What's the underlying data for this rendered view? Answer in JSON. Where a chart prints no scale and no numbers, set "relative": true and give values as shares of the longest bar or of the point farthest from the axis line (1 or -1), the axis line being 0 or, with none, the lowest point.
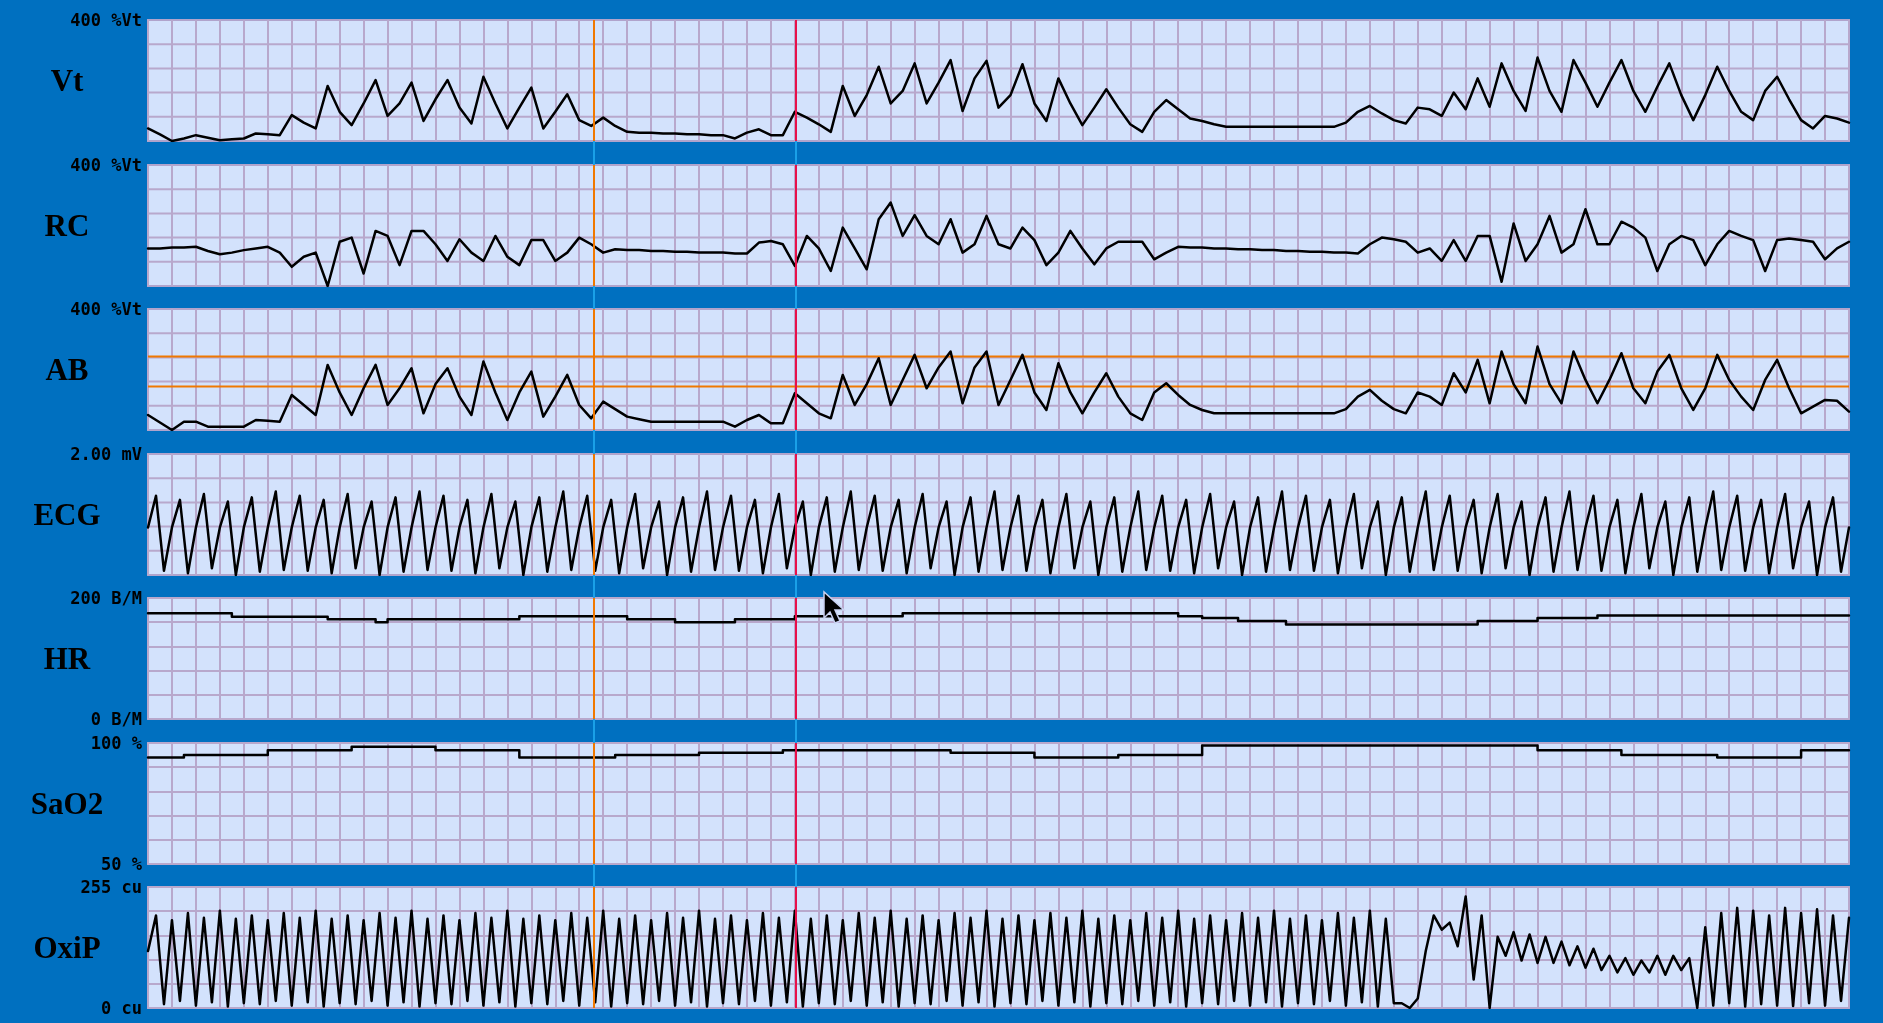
{
  "chart_data": [
    {
      "type": "line",
      "ylabel": "Vt",
      "annotations": [
        "400 %Vt"
      ],
      "relative": true,
      "grid": true,
      "tick_labels": false,
      "marker": "none",
      "line_style": "solid",
      "categories": [
        null,
        null,
        null,
        null,
        null,
        null,
        null,
        null,
        null,
        null,
        null,
        null,
        null,
        null,
        null,
        null,
        null,
        null,
        null,
        null,
        null,
        null,
        null,
        null,
        null,
        null,
        null,
        null,
        null,
        null,
        null,
        null,
        null,
        null,
        null,
        null,
        null,
        null,
        null,
        null,
        null,
        null,
        null,
        null,
        null,
        null,
        null,
        null,
        null,
        null,
        null,
        null,
        null,
        null,
        null,
        null,
        null,
        null,
        null,
        null,
        null,
        null,
        null,
        null,
        null,
        null,
        null,
        null,
        null,
        null,
        null,
        null,
        null,
        null,
        null,
        null,
        null,
        null,
        null,
        null,
        null,
        null,
        null,
        null,
        null,
        null,
        null,
        null,
        null,
        null,
        null,
        null,
        null,
        null,
        null,
        null,
        null,
        null,
        null,
        null,
        null,
        null,
        null,
        null,
        null,
        null,
        null,
        null,
        null,
        null,
        null,
        null,
        null,
        null,
        null,
        null,
        null,
        null,
        null,
        null,
        null,
        null,
        null,
        null,
        null,
        null,
        null,
        null,
        null,
        null,
        null,
        null,
        null,
        null,
        null,
        null,
        null,
        null,
        null,
        null,
        null,
        null,
        null
      ],
      "series": [
        {
          "color": "#000000",
          "values": [
            0.15,
            0.08,
            0,
            0.03,
            0.07,
            0.04,
            0.01,
            0.02,
            0.03,
            0.09,
            0.08,
            0.07,
            0.31,
            0.22,
            0.15,
            0.66,
            0.35,
            0.19,
            0.45,
            0.73,
            0.3,
            0.45,
            0.7,
            0.24,
            0.5,
            0.73,
            0.4,
            0.21,
            0.77,
            0.45,
            0.15,
            0.4,
            0.64,
            0.15,
            0.35,
            0.56,
            0.25,
            0.18,
            0.28,
            0.18,
            0.11,
            0.1,
            0.1,
            0.09,
            0.09,
            0.08,
            0.08,
            0.07,
            0.07,
            0.03,
            0.1,
            0.14,
            0.07,
            0.07,
            0.35,
            0.28,
            0.2,
            0.11,
            0.66,
            0.3,
            0.55,
            0.89,
            0.45,
            0.6,
            0.93,
            0.45,
            0.7,
            0.97,
            0.36,
            0.75,
            0.96,
            0.4,
            0.55,
            0.92,
            0.45,
            0.24,
            0.75,
            0.45,
            0.19,
            0.4,
            0.62,
            0.4,
            0.2,
            0.11,
            0.35,
            0.49,
            0.38,
            0.27,
            0.24,
            0.2,
            0.17,
            0.17,
            0.17,
            0.17,
            0.17,
            0.17,
            0.17,
            0.17,
            0.17,
            0.17,
            0.22,
            0.35,
            0.42,
            0.33,
            0.25,
            0.21,
            0.4,
            0.38,
            0.3,
            0.58,
            0.38,
            0.75,
            0.41,
            0.93,
            0.6,
            0.36,
            1,
            0.6,
            0.35,
            0.97,
            0.7,
            0.41,
            0.7,
            0.97,
            0.6,
            0.35,
            0.65,
            0.93,
            0.55,
            0.25,
            0.55,
            0.89,
            0.6,
            0.35,
            0.25,
            0.6,
            0.77,
            0.5,
            0.25,
            0.15,
            0.3,
            0.27,
            0.22
          ]
        }
      ]
    },
    {
      "type": "line",
      "ylabel": "RC",
      "annotations": [
        "400 %Vt"
      ],
      "relative": true,
      "grid": true,
      "tick_labels": false,
      "marker": "none",
      "line_style": "solid",
      "categories": [
        null,
        null,
        null,
        null,
        null,
        null,
        null,
        null,
        null,
        null,
        null,
        null,
        null,
        null,
        null,
        null,
        null,
        null,
        null,
        null,
        null,
        null,
        null,
        null,
        null,
        null,
        null,
        null,
        null,
        null,
        null,
        null,
        null,
        null,
        null,
        null,
        null,
        null,
        null,
        null,
        null,
        null,
        null,
        null,
        null,
        null,
        null,
        null,
        null,
        null,
        null,
        null,
        null,
        null,
        null,
        null,
        null,
        null,
        null,
        null,
        null,
        null,
        null,
        null,
        null,
        null,
        null,
        null,
        null,
        null,
        null,
        null,
        null,
        null,
        null,
        null,
        null,
        null,
        null,
        null,
        null,
        null,
        null,
        null,
        null,
        null,
        null,
        null,
        null,
        null,
        null,
        null,
        null,
        null,
        null,
        null,
        null,
        null,
        null,
        null,
        null,
        null,
        null,
        null,
        null,
        null,
        null,
        null,
        null,
        null,
        null,
        null,
        null,
        null,
        null,
        null,
        null,
        null,
        null,
        null,
        null,
        null,
        null,
        null,
        null,
        null,
        null,
        null,
        null,
        null,
        null,
        null,
        null,
        null,
        null,
        null,
        null,
        null,
        null,
        null,
        null,
        null,
        null
      ],
      "series": [
        {
          "color": "#000000",
          "values": [
            0.45,
            0.45,
            0.46,
            0.46,
            0.47,
            0.42,
            0.38,
            0.4,
            0.43,
            0.45,
            0.47,
            0.4,
            0.23,
            0.35,
            0.4,
            0,
            0.53,
            0.58,
            0.15,
            0.66,
            0.6,
            0.25,
            0.66,
            0.66,
            0.5,
            0.3,
            0.56,
            0.4,
            0.3,
            0.6,
            0.35,
            0.25,
            0.55,
            0.55,
            0.3,
            0.4,
            0.58,
            0.5,
            0.4,
            0.44,
            0.43,
            0.43,
            0.42,
            0.42,
            0.41,
            0.41,
            0.4,
            0.4,
            0.4,
            0.39,
            0.39,
            0.52,
            0.54,
            0.5,
            0.24,
            0.6,
            0.45,
            0.18,
            0.7,
            0.45,
            0.2,
            0.8,
            1,
            0.6,
            0.85,
            0.6,
            0.5,
            0.8,
            0.4,
            0.5,
            0.84,
            0.5,
            0.45,
            0.7,
            0.55,
            0.25,
            0.4,
            0.66,
            0.45,
            0.26,
            0.45,
            0.53,
            0.53,
            0.53,
            0.32,
            0.4,
            0.47,
            0.46,
            0.46,
            0.45,
            0.45,
            0.44,
            0.44,
            0.43,
            0.43,
            0.42,
            0.42,
            0.41,
            0.41,
            0.4,
            0.4,
            0.39,
            0.5,
            0.58,
            0.56,
            0.53,
            0.4,
            0.45,
            0.3,
            0.55,
            0.3,
            0.6,
            0.6,
            0.05,
            0.75,
            0.3,
            0.5,
            0.84,
            0.4,
            0.5,
            0.92,
            0.5,
            0.5,
            0.77,
            0.7,
            0.58,
            0.18,
            0.5,
            0.6,
            0.55,
            0.25,
            0.5,
            0.66,
            0.6,
            0.55,
            0.18,
            0.55,
            0.57,
            0.55,
            0.53,
            0.32,
            0.45,
            0.53
          ]
        }
      ]
    },
    {
      "type": "line",
      "ylabel": "AB",
      "annotations": [
        "400 %Vt"
      ],
      "relative": true,
      "grid": true,
      "tick_labels": false,
      "marker": "none",
      "line_style": "solid",
      "ref_lines": [
        {
          "axis": "y",
          "value": 0.88,
          "color": "#f07800"
        },
        {
          "axis": "y",
          "value": 0.52,
          "color": "#f07800"
        }
      ],
      "categories": [
        null,
        null,
        null,
        null,
        null,
        null,
        null,
        null,
        null,
        null,
        null,
        null,
        null,
        null,
        null,
        null,
        null,
        null,
        null,
        null,
        null,
        null,
        null,
        null,
        null,
        null,
        null,
        null,
        null,
        null,
        null,
        null,
        null,
        null,
        null,
        null,
        null,
        null,
        null,
        null,
        null,
        null,
        null,
        null,
        null,
        null,
        null,
        null,
        null,
        null,
        null,
        null,
        null,
        null,
        null,
        null,
        null,
        null,
        null,
        null,
        null,
        null,
        null,
        null,
        null,
        null,
        null,
        null,
        null,
        null,
        null,
        null,
        null,
        null,
        null,
        null,
        null,
        null,
        null,
        null,
        null,
        null,
        null,
        null,
        null,
        null,
        null,
        null,
        null,
        null,
        null,
        null,
        null,
        null,
        null,
        null,
        null,
        null,
        null,
        null,
        null,
        null,
        null,
        null,
        null,
        null,
        null,
        null,
        null,
        null,
        null,
        null,
        null,
        null,
        null,
        null,
        null,
        null,
        null,
        null,
        null,
        null,
        null,
        null,
        null,
        null,
        null,
        null,
        null,
        null,
        null,
        null,
        null,
        null,
        null,
        null,
        null,
        null,
        null,
        null,
        null,
        null,
        null
      ],
      "series": [
        {
          "color": "#000000",
          "values": [
            0.18,
            0.09,
            0,
            0.1,
            0.1,
            0.04,
            0.04,
            0.04,
            0.04,
            0.12,
            0.11,
            0.1,
            0.42,
            0.3,
            0.18,
            0.78,
            0.45,
            0.18,
            0.5,
            0.78,
            0.3,
            0.5,
            0.74,
            0.2,
            0.55,
            0.74,
            0.4,
            0.18,
            0.82,
            0.45,
            0.12,
            0.45,
            0.7,
            0.16,
            0.4,
            0.66,
            0.3,
            0.14,
            0.34,
            0.25,
            0.16,
            0.13,
            0.1,
            0.1,
            0.1,
            0.1,
            0.1,
            0.1,
            0.1,
            0.04,
            0.12,
            0.18,
            0.08,
            0.08,
            0.44,
            0.32,
            0.2,
            0.14,
            0.66,
            0.3,
            0.55,
            0.86,
            0.3,
            0.6,
            0.9,
            0.5,
            0.75,
            0.94,
            0.32,
            0.75,
            0.94,
            0.3,
            0.6,
            0.9,
            0.45,
            0.24,
            0.8,
            0.45,
            0.2,
            0.45,
            0.68,
            0.4,
            0.2,
            0.12,
            0.45,
            0.56,
            0.42,
            0.3,
            0.24,
            0.2,
            0.2,
            0.2,
            0.2,
            0.2,
            0.2,
            0.2,
            0.2,
            0.2,
            0.2,
            0.2,
            0.25,
            0.4,
            0.48,
            0.35,
            0.25,
            0.2,
            0.45,
            0.4,
            0.3,
            0.68,
            0.45,
            0.84,
            0.32,
            0.94,
            0.55,
            0.32,
            1,
            0.55,
            0.32,
            0.94,
            0.6,
            0.32,
            0.6,
            0.92,
            0.5,
            0.32,
            0.7,
            0.9,
            0.5,
            0.24,
            0.5,
            0.9,
            0.6,
            0.4,
            0.24,
            0.6,
            0.84,
            0.5,
            0.2,
            0.28,
            0.36,
            0.35,
            0.22
          ]
        }
      ]
    },
    {
      "type": "line",
      "ylabel": "ECG",
      "annotations": [
        "2.00 mV"
      ],
      "relative": true,
      "grid": true,
      "tick_labels": false,
      "marker": "none",
      "line_style": "solid",
      "categories": [
        null,
        null,
        null,
        null,
        null,
        null,
        null,
        null,
        null,
        null,
        null,
        null,
        null,
        null,
        null,
        null,
        null,
        null,
        null,
        null,
        null,
        null,
        null,
        null,
        null,
        null,
        null,
        null,
        null,
        null,
        null,
        null,
        null,
        null,
        null,
        null,
        null,
        null,
        null,
        null,
        null,
        null,
        null,
        null,
        null,
        null,
        null,
        null,
        null,
        null,
        null,
        null,
        null,
        null,
        null,
        null,
        null,
        null,
        null,
        null,
        null,
        null,
        null,
        null,
        null,
        null,
        null,
        null,
        null,
        null,
        null,
        null,
        null,
        null,
        null,
        null,
        null,
        null,
        null,
        null,
        null,
        null,
        null,
        null,
        null,
        null,
        null,
        null,
        null,
        null,
        null,
        null,
        null,
        null,
        null,
        null,
        null,
        null,
        null,
        null,
        null,
        null,
        null,
        null,
        null,
        null,
        null,
        null,
        null,
        null,
        null,
        null,
        null,
        null,
        null,
        null,
        null,
        null,
        null,
        null,
        null,
        null,
        null,
        null,
        null,
        null,
        null,
        null,
        null,
        null,
        null,
        null,
        null,
        null,
        null,
        null,
        null,
        null,
        null,
        null,
        null,
        null,
        null,
        null,
        null,
        null,
        null,
        null,
        null,
        null,
        null,
        null,
        null,
        null,
        null,
        null,
        null,
        null,
        null,
        null,
        null,
        null,
        null,
        null,
        null,
        null,
        null,
        null,
        null,
        null,
        null,
        null,
        null,
        null,
        null,
        null,
        null,
        null,
        null,
        null,
        null,
        null,
        null,
        null,
        null,
        null,
        null,
        null,
        null,
        null,
        null,
        null,
        null,
        null,
        null,
        null,
        null,
        null,
        null,
        null,
        null,
        null,
        null,
        null,
        null,
        null,
        null,
        null,
        null,
        null,
        null,
        null,
        null,
        null
      ],
      "series": [
        {
          "color": "#000000",
          "values": [
            0.57,
            0.95,
            0.05,
            0.57,
            0.9,
            0.02,
            0.57,
            0.97,
            0.08,
            0.57,
            0.88,
            0,
            0.57,
            0.93,
            0.04,
            0.57,
            1,
            0.06,
            0.57,
            0.95,
            0.05,
            0.57,
            0.9,
            0.02,
            0.57,
            0.97,
            0.08,
            0.57,
            0.88,
            0,
            0.57,
            0.93,
            0.04,
            0.57,
            1,
            0.06,
            0.57,
            0.95,
            0.05,
            0.57,
            0.9,
            0.02,
            0.57,
            0.97,
            0.08,
            0.57,
            0.88,
            0,
            0.57,
            0.93,
            0.04,
            0.57,
            1,
            0.06,
            0.57,
            0.95,
            0.05,
            0.57,
            0.9,
            0.02,
            0.57,
            0.97,
            0.08,
            0.57,
            0.88,
            0,
            0.57,
            0.93,
            0.04,
            0.57,
            1,
            0.06,
            0.57,
            0.95,
            0.05,
            0.57,
            0.9,
            0.02,
            0.57,
            0.97,
            0.08,
            0.57,
            0.88,
            0,
            0.57,
            0.93,
            0.04,
            0.57,
            1,
            0.06,
            0.57,
            0.95,
            0.05,
            0.57,
            0.9,
            0.02,
            0.57,
            0.97,
            0.08,
            0.57,
            0.88,
            0,
            0.57,
            0.93,
            0.04,
            0.57,
            1,
            0.06,
            0.57,
            0.95,
            0.05,
            0.57,
            0.9,
            0.02,
            0.57,
            0.97,
            0.08,
            0.57,
            0.88,
            0,
            0.57,
            0.93,
            0.04,
            0.57,
            1,
            0.06,
            0.57,
            0.95,
            0.05,
            0.57,
            0.9,
            0.02,
            0.57,
            0.97,
            0.08,
            0.57,
            0.88,
            0,
            0.57,
            0.93,
            0.04,
            0.57,
            1,
            0.06,
            0.57,
            0.95,
            0.05,
            0.57,
            0.9,
            0.02,
            0.57,
            0.97,
            0.08,
            0.57,
            0.88,
            0,
            0.57,
            0.93,
            0.04,
            0.57,
            1,
            0.06,
            0.57,
            0.95,
            0.05,
            0.57,
            0.9,
            0.02,
            0.57,
            0.97,
            0.08,
            0.57,
            0.88,
            0,
            0.57,
            0.93,
            0.04,
            0.57,
            1,
            0.06,
            0.57,
            0.95,
            0.05,
            0.57,
            0.9,
            0.02,
            0.57,
            0.97,
            0.08,
            0.57,
            0.88,
            0,
            0.57,
            0.93,
            0.04,
            0.57,
            1,
            0.06,
            0.57,
            0.95,
            0.05,
            0.57,
            0.9,
            0.02,
            0.57,
            0.97,
            0.08,
            0.57,
            0.88,
            0,
            0.57,
            0.93,
            0.04,
            0.57
          ]
        }
      ]
    },
    {
      "type": "step",
      "ylabel": "HR",
      "grid": true,
      "tick_labels": "y",
      "marker": "none",
      "line_style": "solid",
      "ylim": [
        0,
        200
      ],
      "yticks": [
        {
          "value": 0,
          "label": "0 B/M"
        },
        {
          "value": 40,
          "label": null
        },
        {
          "value": 80,
          "label": null
        },
        {
          "value": 120,
          "label": null
        },
        {
          "value": 160,
          "label": null
        },
        {
          "value": 200,
          "label": "200 B/M"
        }
      ],
      "categories": [
        null,
        null,
        null,
        null,
        null,
        null,
        null,
        null,
        null,
        null,
        null,
        null,
        null,
        null,
        null,
        null,
        null,
        null,
        null,
        null,
        null,
        null,
        null,
        null,
        null,
        null,
        null,
        null,
        null,
        null,
        null,
        null,
        null,
        null,
        null,
        null,
        null,
        null,
        null,
        null,
        null,
        null,
        null,
        null,
        null,
        null,
        null,
        null,
        null,
        null,
        null,
        null,
        null,
        null,
        null,
        null,
        null,
        null,
        null,
        null,
        null,
        null,
        null,
        null,
        null,
        null,
        null,
        null,
        null,
        null,
        null,
        null,
        null,
        null,
        null,
        null,
        null,
        null,
        null,
        null,
        null,
        null,
        null,
        null,
        null,
        null,
        null,
        null,
        null,
        null,
        null,
        null,
        null,
        null,
        null,
        null,
        null,
        null,
        null,
        null,
        null,
        null,
        null,
        null,
        null,
        null,
        null,
        null,
        null,
        null,
        null,
        null,
        null,
        null,
        null,
        null,
        null,
        null,
        null,
        null,
        null,
        null,
        null,
        null,
        null,
        null,
        null,
        null,
        null,
        null,
        null,
        null,
        null,
        null,
        null,
        null,
        null,
        null,
        null,
        null,
        null,
        null,
        null
      ],
      "series": [
        {
          "color": "#000000",
          "values": [
            175,
            175,
            175,
            175,
            175,
            175,
            175,
            169,
            169,
            169,
            169,
            169,
            169,
            169,
            169,
            165,
            165,
            165,
            165,
            160,
            165,
            165,
            165,
            165,
            165,
            165,
            165,
            165,
            165,
            165,
            165,
            170,
            170,
            170,
            170,
            170,
            170,
            170,
            170,
            170,
            165,
            165,
            165,
            165,
            160,
            160,
            160,
            160,
            160,
            165,
            165,
            165,
            165,
            165,
            170,
            170,
            170,
            170,
            170,
            170,
            170,
            170,
            170,
            175,
            175,
            175,
            175,
            175,
            175,
            175,
            175,
            175,
            175,
            175,
            175,
            175,
            175,
            175,
            175,
            175,
            175,
            175,
            175,
            175,
            175,
            175,
            170,
            170,
            167,
            167,
            167,
            162,
            162,
            162,
            162,
            156,
            156,
            156,
            156,
            156,
            156,
            156,
            156,
            156,
            156,
            156,
            156,
            156,
            156,
            156,
            156,
            162,
            162,
            162,
            162,
            162,
            167,
            167,
            167,
            167,
            167,
            171,
            171,
            171,
            171,
            171,
            171,
            171,
            171,
            171,
            171,
            171,
            171,
            171,
            171,
            171,
            171,
            171,
            171,
            171,
            171,
            171,
            171
          ]
        }
      ]
    },
    {
      "type": "step",
      "ylabel": "SaO2",
      "grid": true,
      "tick_labels": "y",
      "marker": "none",
      "line_style": "solid",
      "ylim": [
        50,
        100
      ],
      "yticks": [
        {
          "value": 50,
          "label": "50 %"
        },
        {
          "value": 60,
          "label": null
        },
        {
          "value": 70,
          "label": null
        },
        {
          "value": 80,
          "label": null
        },
        {
          "value": 90,
          "label": null
        },
        {
          "value": 100,
          "label": "100 %"
        }
      ],
      "categories": [
        null,
        null,
        null,
        null,
        null,
        null,
        null,
        null,
        null,
        null,
        null,
        null,
        null,
        null,
        null,
        null,
        null,
        null,
        null,
        null,
        null,
        null,
        null,
        null,
        null,
        null,
        null,
        null,
        null,
        null,
        null,
        null,
        null,
        null,
        null,
        null,
        null,
        null,
        null,
        null,
        null,
        null,
        null,
        null,
        null,
        null,
        null,
        null,
        null,
        null,
        null,
        null,
        null,
        null,
        null,
        null,
        null,
        null,
        null,
        null,
        null,
        null,
        null,
        null,
        null,
        null,
        null,
        null,
        null,
        null,
        null,
        null,
        null,
        null,
        null,
        null,
        null,
        null,
        null,
        null,
        null,
        null,
        null,
        null,
        null,
        null,
        null,
        null,
        null,
        null,
        null,
        null,
        null,
        null,
        null,
        null,
        null,
        null,
        null,
        null,
        null,
        null,
        null,
        null,
        null,
        null,
        null,
        null,
        null,
        null,
        null,
        null,
        null,
        null,
        null,
        null,
        null,
        null,
        null,
        null,
        null,
        null,
        null,
        null,
        null,
        null,
        null,
        null,
        null,
        null,
        null,
        null,
        null,
        null,
        null,
        null,
        null,
        null,
        null,
        null,
        null,
        null,
        null
      ],
      "series": [
        {
          "color": "#000000",
          "values": [
            94,
            94,
            94,
            95,
            95,
            95,
            95,
            95,
            95,
            95,
            97,
            97,
            97,
            97,
            97,
            97,
            97,
            98.5,
            98.5,
            98.5,
            98.5,
            98.5,
            98.5,
            98.5,
            97,
            97,
            97,
            97,
            97,
            97,
            97,
            94,
            94,
            94,
            94,
            94,
            94,
            94,
            94,
            95,
            95,
            95,
            95,
            95,
            95,
            95,
            96,
            96,
            96,
            96,
            96,
            96,
            96,
            97,
            97,
            97,
            97,
            97,
            97,
            97,
            97,
            97,
            97,
            97,
            97,
            97,
            97,
            96,
            96,
            96,
            96,
            96,
            96,
            96,
            94,
            94,
            94,
            94,
            94,
            94,
            94,
            95,
            95,
            95,
            95,
            95,
            95,
            95,
            99,
            99,
            99,
            99,
            99,
            99,
            99,
            99,
            99,
            99,
            99,
            99,
            99,
            99,
            99,
            99,
            99,
            99,
            99,
            99,
            99,
            99,
            99,
            99,
            99,
            99,
            99,
            99,
            97,
            97,
            97,
            97,
            97,
            97,
            97,
            95,
            95,
            95,
            95,
            95,
            95,
            95,
            95,
            94,
            94,
            94,
            94,
            94,
            94,
            94,
            97,
            97,
            97,
            97,
            97
          ]
        }
      ]
    },
    {
      "type": "line",
      "ylabel": "OxiP",
      "grid": true,
      "tick_labels": "y",
      "marker": "none",
      "line_style": "solid",
      "ylim": [
        0,
        255
      ],
      "yticks": [
        {
          "value": 0,
          "label": "0 cu"
        },
        {
          "value": 51,
          "label": null
        },
        {
          "value": 102,
          "label": null
        },
        {
          "value": 153,
          "label": null
        },
        {
          "value": 204,
          "label": null
        },
        {
          "value": 255,
          "label": "255 cu"
        }
      ],
      "categories": [
        null,
        null,
        null,
        null,
        null,
        null,
        null,
        null,
        null,
        null,
        null,
        null,
        null,
        null,
        null,
        null,
        null,
        null,
        null,
        null,
        null,
        null,
        null,
        null,
        null,
        null,
        null,
        null,
        null,
        null,
        null,
        null,
        null,
        null,
        null,
        null,
        null,
        null,
        null,
        null,
        null,
        null,
        null,
        null,
        null,
        null,
        null,
        null,
        null,
        null,
        null,
        null,
        null,
        null,
        null,
        null,
        null,
        null,
        null,
        null,
        null,
        null,
        null,
        null,
        null,
        null,
        null,
        null,
        null,
        null,
        null,
        null,
        null,
        null,
        null,
        null,
        null,
        null,
        null,
        null,
        null,
        null,
        null,
        null,
        null,
        null,
        null,
        null,
        null,
        null,
        null,
        null,
        null,
        null,
        null,
        null,
        null,
        null,
        null,
        null,
        null,
        null,
        null,
        null,
        null,
        null,
        null,
        null,
        null,
        null,
        null,
        null,
        null,
        null,
        null,
        null,
        null,
        null,
        null,
        null,
        null,
        null,
        null,
        null,
        null,
        null,
        null,
        null,
        null,
        null,
        null,
        null,
        null,
        null,
        null,
        null,
        null,
        null,
        null,
        null,
        null,
        null,
        null,
        null,
        null,
        null,
        null,
        null,
        null,
        null,
        null,
        null,
        null,
        null,
        null,
        null,
        null,
        null,
        null,
        null,
        null,
        null,
        null,
        null,
        null,
        null,
        null,
        null,
        null,
        null,
        null,
        null,
        null,
        null,
        null,
        null,
        null,
        null,
        null,
        null,
        null,
        null,
        null,
        null,
        null,
        null,
        null,
        null,
        null,
        null,
        null,
        null,
        null,
        null,
        null,
        null,
        null,
        null,
        null,
        null,
        null,
        null,
        null,
        null,
        null,
        null,
        null,
        null,
        null,
        null,
        null,
        null,
        null,
        null
      ],
      "series": [
        {
          "color": "#000000",
          "values": [
            120,
            195,
            8,
            185,
            15,
            200,
            5,
            190,
            12,
            205,
            3,
            188,
            10,
            195,
            8,
            185,
            15,
            200,
            5,
            190,
            12,
            205,
            3,
            188,
            10,
            195,
            8,
            185,
            15,
            200,
            5,
            190,
            12,
            205,
            3,
            188,
            10,
            195,
            8,
            185,
            15,
            200,
            5,
            190,
            12,
            205,
            3,
            188,
            10,
            195,
            8,
            185,
            15,
            200,
            5,
            190,
            12,
            205,
            3,
            188,
            10,
            195,
            8,
            185,
            15,
            200,
            5,
            190,
            12,
            205,
            3,
            188,
            10,
            195,
            8,
            185,
            15,
            200,
            5,
            190,
            12,
            205,
            3,
            188,
            10,
            195,
            8,
            185,
            15,
            200,
            5,
            190,
            12,
            205,
            3,
            188,
            10,
            195,
            8,
            185,
            15,
            200,
            5,
            190,
            12,
            205,
            3,
            188,
            10,
            195,
            8,
            185,
            15,
            200,
            5,
            190,
            12,
            205,
            3,
            188,
            10,
            195,
            8,
            185,
            15,
            200,
            5,
            190,
            12,
            205,
            3,
            188,
            10,
            195,
            8,
            185,
            15,
            200,
            5,
            190,
            12,
            205,
            3,
            188,
            10,
            195,
            8,
            185,
            15,
            200,
            5,
            190,
            12,
            205,
            3,
            188,
            10,
            10,
            0,
            20,
            120,
            195,
            165,
            180,
            130,
            235,
            60,
            195,
            0,
            150,
            110,
            160,
            100,
            155,
            95,
            150,
            95,
            140,
            90,
            130,
            85,
            125,
            80,
            110,
            75,
            105,
            70,
            100,
            75,
            110,
            70,
            110,
            80,
            105,
            0,
            170,
            5,
            200,
            10,
            211,
            3,
            205,
            8,
            195,
            5,
            211,
            4,
            200,
            10,
            208,
            5,
            195,
            15,
            190
          ]
        }
      ]
    }
  ]
}
